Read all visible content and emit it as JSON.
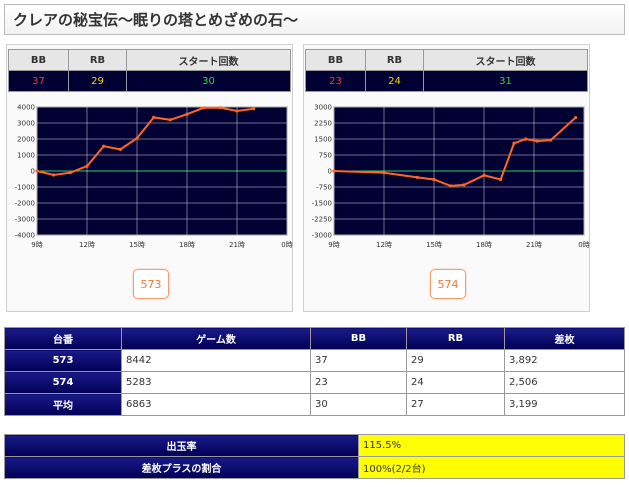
{
  "page_title": "クレアの秘宝伝～眠りの塔とめざめの石～",
  "stat_headers": {
    "bb": "BB",
    "rb": "RB",
    "start": "スタート回数"
  },
  "machines": [
    {
      "id": "573",
      "bb": "37",
      "rb": "29",
      "start": "30",
      "button_label": "573"
    },
    {
      "id": "574",
      "bb": "23",
      "rb": "24",
      "start": "31",
      "button_label": "574"
    }
  ],
  "chart_data": [
    {
      "type": "line",
      "x_labels": [
        "9時",
        "12時",
        "15時",
        "18時",
        "21時",
        "0時"
      ],
      "y_labels": [
        "4000",
        "3000",
        "2000",
        "1000",
        "0",
        "-1000",
        "-2000",
        "-3000",
        "-4000"
      ],
      "ylim": [
        -4000,
        4000
      ],
      "xlim": [
        9,
        24
      ],
      "x": [
        9.0,
        10.0,
        11.0,
        12.0,
        13.0,
        14.0,
        15.0,
        16.0,
        17.0,
        18.0,
        19.0,
        20.0,
        21.0,
        22.0
      ],
      "values": [
        0,
        -250,
        -100,
        300,
        1550,
        1350,
        2050,
        3350,
        3200,
        3550,
        3950,
        3950,
        3750,
        3892
      ],
      "series_color": "#ff6622"
    },
    {
      "type": "line",
      "x_labels": [
        "9時",
        "12時",
        "15時",
        "18時",
        "21時",
        "0時"
      ],
      "y_labels": [
        "3000",
        "2250",
        "1500",
        "750",
        "0",
        "-750",
        "-1500",
        "-2250",
        "-3000"
      ],
      "ylim": [
        -3000,
        3000
      ],
      "xlim": [
        9,
        24
      ],
      "x": [
        9.0,
        12.0,
        14.0,
        15.0,
        16.0,
        16.8,
        18.0,
        19.0,
        19.8,
        20.5,
        21.2,
        22.0,
        23.5
      ],
      "values": [
        0,
        -80,
        -300,
        -400,
        -700,
        -650,
        -200,
        -400,
        1300,
        1500,
        1400,
        1450,
        2506
      ],
      "series_color": "#ff6622"
    }
  ],
  "summary": {
    "headers": [
      "台番",
      "ゲーム数",
      "BB",
      "RB",
      "差枚"
    ],
    "rows": [
      [
        "573",
        "8442",
        "37",
        "29",
        "3,892"
      ],
      [
        "574",
        "5283",
        "23",
        "24",
        "2,506"
      ],
      [
        "平均",
        "6863",
        "30",
        "27",
        "3,199"
      ]
    ]
  },
  "rates": {
    "payout_label": "出玉率",
    "payout_value": "115.5%",
    "plus_label": "差枚プラスの割合",
    "plus_value": "100%(2/2台)"
  }
}
